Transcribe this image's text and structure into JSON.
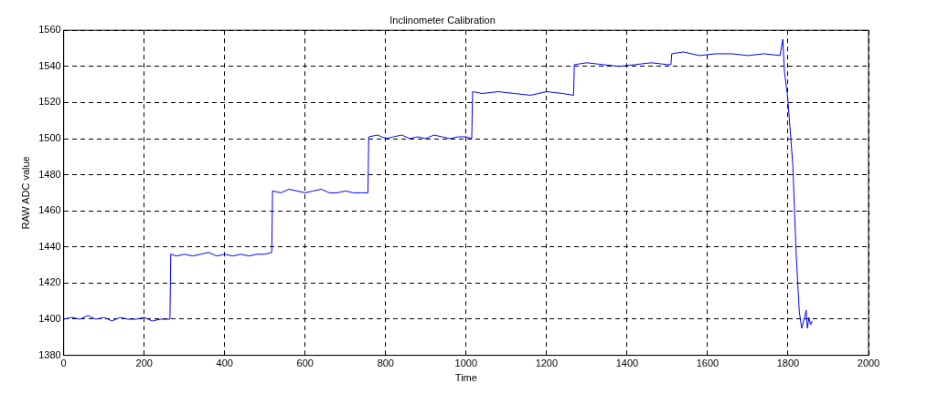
{
  "chart_data": {
    "type": "line",
    "title": "Inclinometer Calibration",
    "xlabel": "Time",
    "ylabel": "RAW ADC value",
    "xlim": [
      0,
      2000
    ],
    "xticks": [
      0,
      200,
      400,
      600,
      800,
      1000,
      1200,
      1400,
      1600,
      1800,
      2000
    ],
    "ylim": [
      1380,
      1560
    ],
    "yticks": [
      1380,
      1400,
      1420,
      1440,
      1460,
      1480,
      1500,
      1520,
      1540,
      1560
    ],
    "grid": true,
    "line_style": "solid",
    "marker": "none",
    "legend": false,
    "series": [
      {
        "color": "#0000ff",
        "x": [
          0,
          20,
          40,
          60,
          80,
          100,
          120,
          140,
          160,
          180,
          200,
          220,
          240,
          264,
          266,
          280,
          300,
          320,
          340,
          360,
          380,
          400,
          420,
          440,
          460,
          480,
          500,
          517,
          519,
          540,
          560,
          580,
          600,
          620,
          640,
          660,
          680,
          700,
          720,
          740,
          756,
          758,
          780,
          800,
          820,
          840,
          860,
          880,
          900,
          920,
          940,
          960,
          980,
          1000,
          1014,
          1016,
          1040,
          1080,
          1120,
          1160,
          1200,
          1240,
          1267,
          1269,
          1300,
          1340,
          1380,
          1420,
          1460,
          1500,
          1509,
          1511,
          1540,
          1580,
          1620,
          1660,
          1700,
          1740,
          1780,
          1787,
          1791,
          1799,
          1812,
          1820,
          1828,
          1834,
          1840,
          1845,
          1848,
          1852,
          1856,
          1860
        ],
        "values": [
          1400,
          1401,
          1400,
          1402,
          1400,
          1401,
          1399,
          1401,
          1400,
          1400,
          1401,
          1399,
          1400,
          1400,
          1436,
          1435,
          1436,
          1435,
          1436,
          1437,
          1435,
          1436,
          1435,
          1436,
          1435,
          1436,
          1436,
          1437,
          1471,
          1470,
          1472,
          1471,
          1470,
          1471,
          1472,
          1470,
          1470,
          1471,
          1470,
          1470,
          1470,
          1501,
          1502,
          1500,
          1501,
          1502,
          1500,
          1501,
          1500,
          1502,
          1501,
          1500,
          1501,
          1501,
          1500,
          1526,
          1525,
          1526,
          1525,
          1524,
          1526,
          1525,
          1524,
          1541,
          1542,
          1541,
          1540,
          1541,
          1542,
          1541,
          1541,
          1547,
          1548,
          1546,
          1547,
          1547,
          1546,
          1547,
          1546,
          1555,
          1537,
          1523,
          1485,
          1437,
          1404,
          1395,
          1400,
          1405,
          1395,
          1401,
          1397,
          1399
        ]
      }
    ]
  }
}
